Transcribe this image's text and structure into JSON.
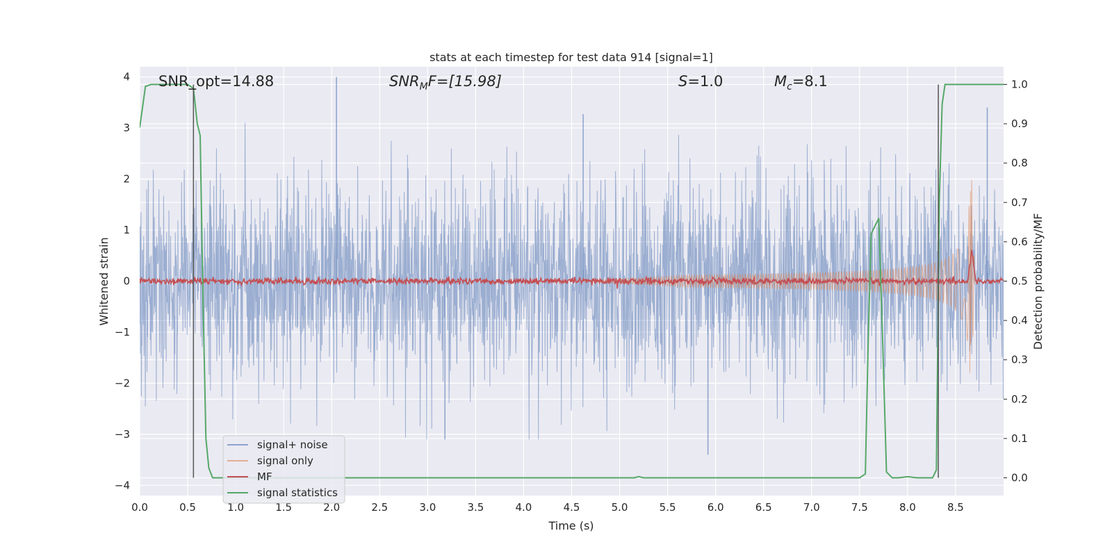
{
  "chart_data": {
    "type": "line",
    "title": "stats at each timestep for test data 914 [signal=1]",
    "xlabel": "Time (s)",
    "ylabel": "Whitened strain",
    "ylabel_right": "Detection probability/MF",
    "xlim": [
      0.0,
      9.0
    ],
    "ylim": [
      -4.2,
      4.2
    ],
    "ylim_right": [
      -0.045,
      1.045
    ],
    "x_ticks": [
      "0.0",
      "0.5",
      "1.0",
      "1.5",
      "2.0",
      "2.5",
      "3.0",
      "3.5",
      "4.0",
      "4.5",
      "5.0",
      "5.5",
      "6.0",
      "6.5",
      "7.0",
      "7.5",
      "8.0",
      "8.5"
    ],
    "y_ticks": [
      "4",
      "3",
      "2",
      "1",
      "0",
      "−1",
      "−2",
      "−3",
      "−4"
    ],
    "y_right_ticks": [
      "1.0",
      "0.9",
      "0.8",
      "0.7",
      "0.6",
      "0.5",
      "0.4",
      "0.3",
      "0.2",
      "0.1",
      "0.0"
    ],
    "grid": true,
    "legend_position": "lower-left",
    "annotations": {
      "snr_opt": "SNR_opt=14.88",
      "snr_mf_main": "SNR",
      "snr_mf_sub": "M",
      "snr_mf_rest": "F=[15.98]",
      "s_main": "S",
      "s_rest": "=1.0",
      "mc_main": "M",
      "mc_sub": "c",
      "mc_rest": "=8.1"
    },
    "vertical_markers": [
      0.56,
      8.32
    ],
    "series": [
      {
        "name": "signal+ noise",
        "color": "#4c72b0",
        "description_kind": "noise",
        "amplitude_envelope": {
          "typical": 1.5,
          "max_peaks": [
            [
              2.05,
              4.0
            ],
            [
              4.62,
              3.27
            ],
            [
              8.83,
              3.4
            ],
            [
              5.92,
              -3.4
            ],
            [
              3.18,
              -3.1
            ]
          ]
        }
      },
      {
        "name": "signal only",
        "color": "#dd8452",
        "description_kind": "chirp",
        "chirp": {
          "start": 4.5,
          "merger": 8.67,
          "amp_start": 0.05,
          "amp_peak": 2.0
        }
      },
      {
        "name": "MF",
        "color": "#c44e52",
        "baseline": 0.5,
        "peak": {
          "x": 8.67,
          "y": 0.58
        }
      },
      {
        "name": "signal statistics",
        "color": "#55a868",
        "x": [
          0.0,
          0.06,
          0.12,
          0.5,
          0.56,
          0.6,
          0.63,
          0.66,
          0.69,
          0.72,
          0.76,
          0.8,
          1.0,
          3.0,
          5.0,
          5.15,
          5.2,
          5.25,
          7.0,
          7.5,
          7.56,
          7.59,
          7.62,
          7.66,
          7.7,
          7.74,
          7.78,
          7.84,
          7.9,
          8.0,
          8.1,
          8.2,
          8.26,
          8.3,
          8.33,
          8.36,
          8.39,
          8.5,
          8.75,
          9.0
        ],
        "y": [
          0.89,
          0.995,
          1.0,
          1.0,
          0.99,
          0.9,
          0.87,
          0.45,
          0.1,
          0.025,
          0.0,
          0.0,
          0.0,
          0.0,
          0.0,
          0.0,
          0.003,
          0.0,
          0.0,
          0.0,
          0.01,
          0.35,
          0.62,
          0.64,
          0.66,
          0.35,
          0.015,
          0.0,
          0.0,
          0.003,
          0.0,
          0.0,
          0.0,
          0.02,
          0.7,
          0.95,
          1.0,
          1.0,
          1.0,
          1.0
        ]
      }
    ]
  }
}
